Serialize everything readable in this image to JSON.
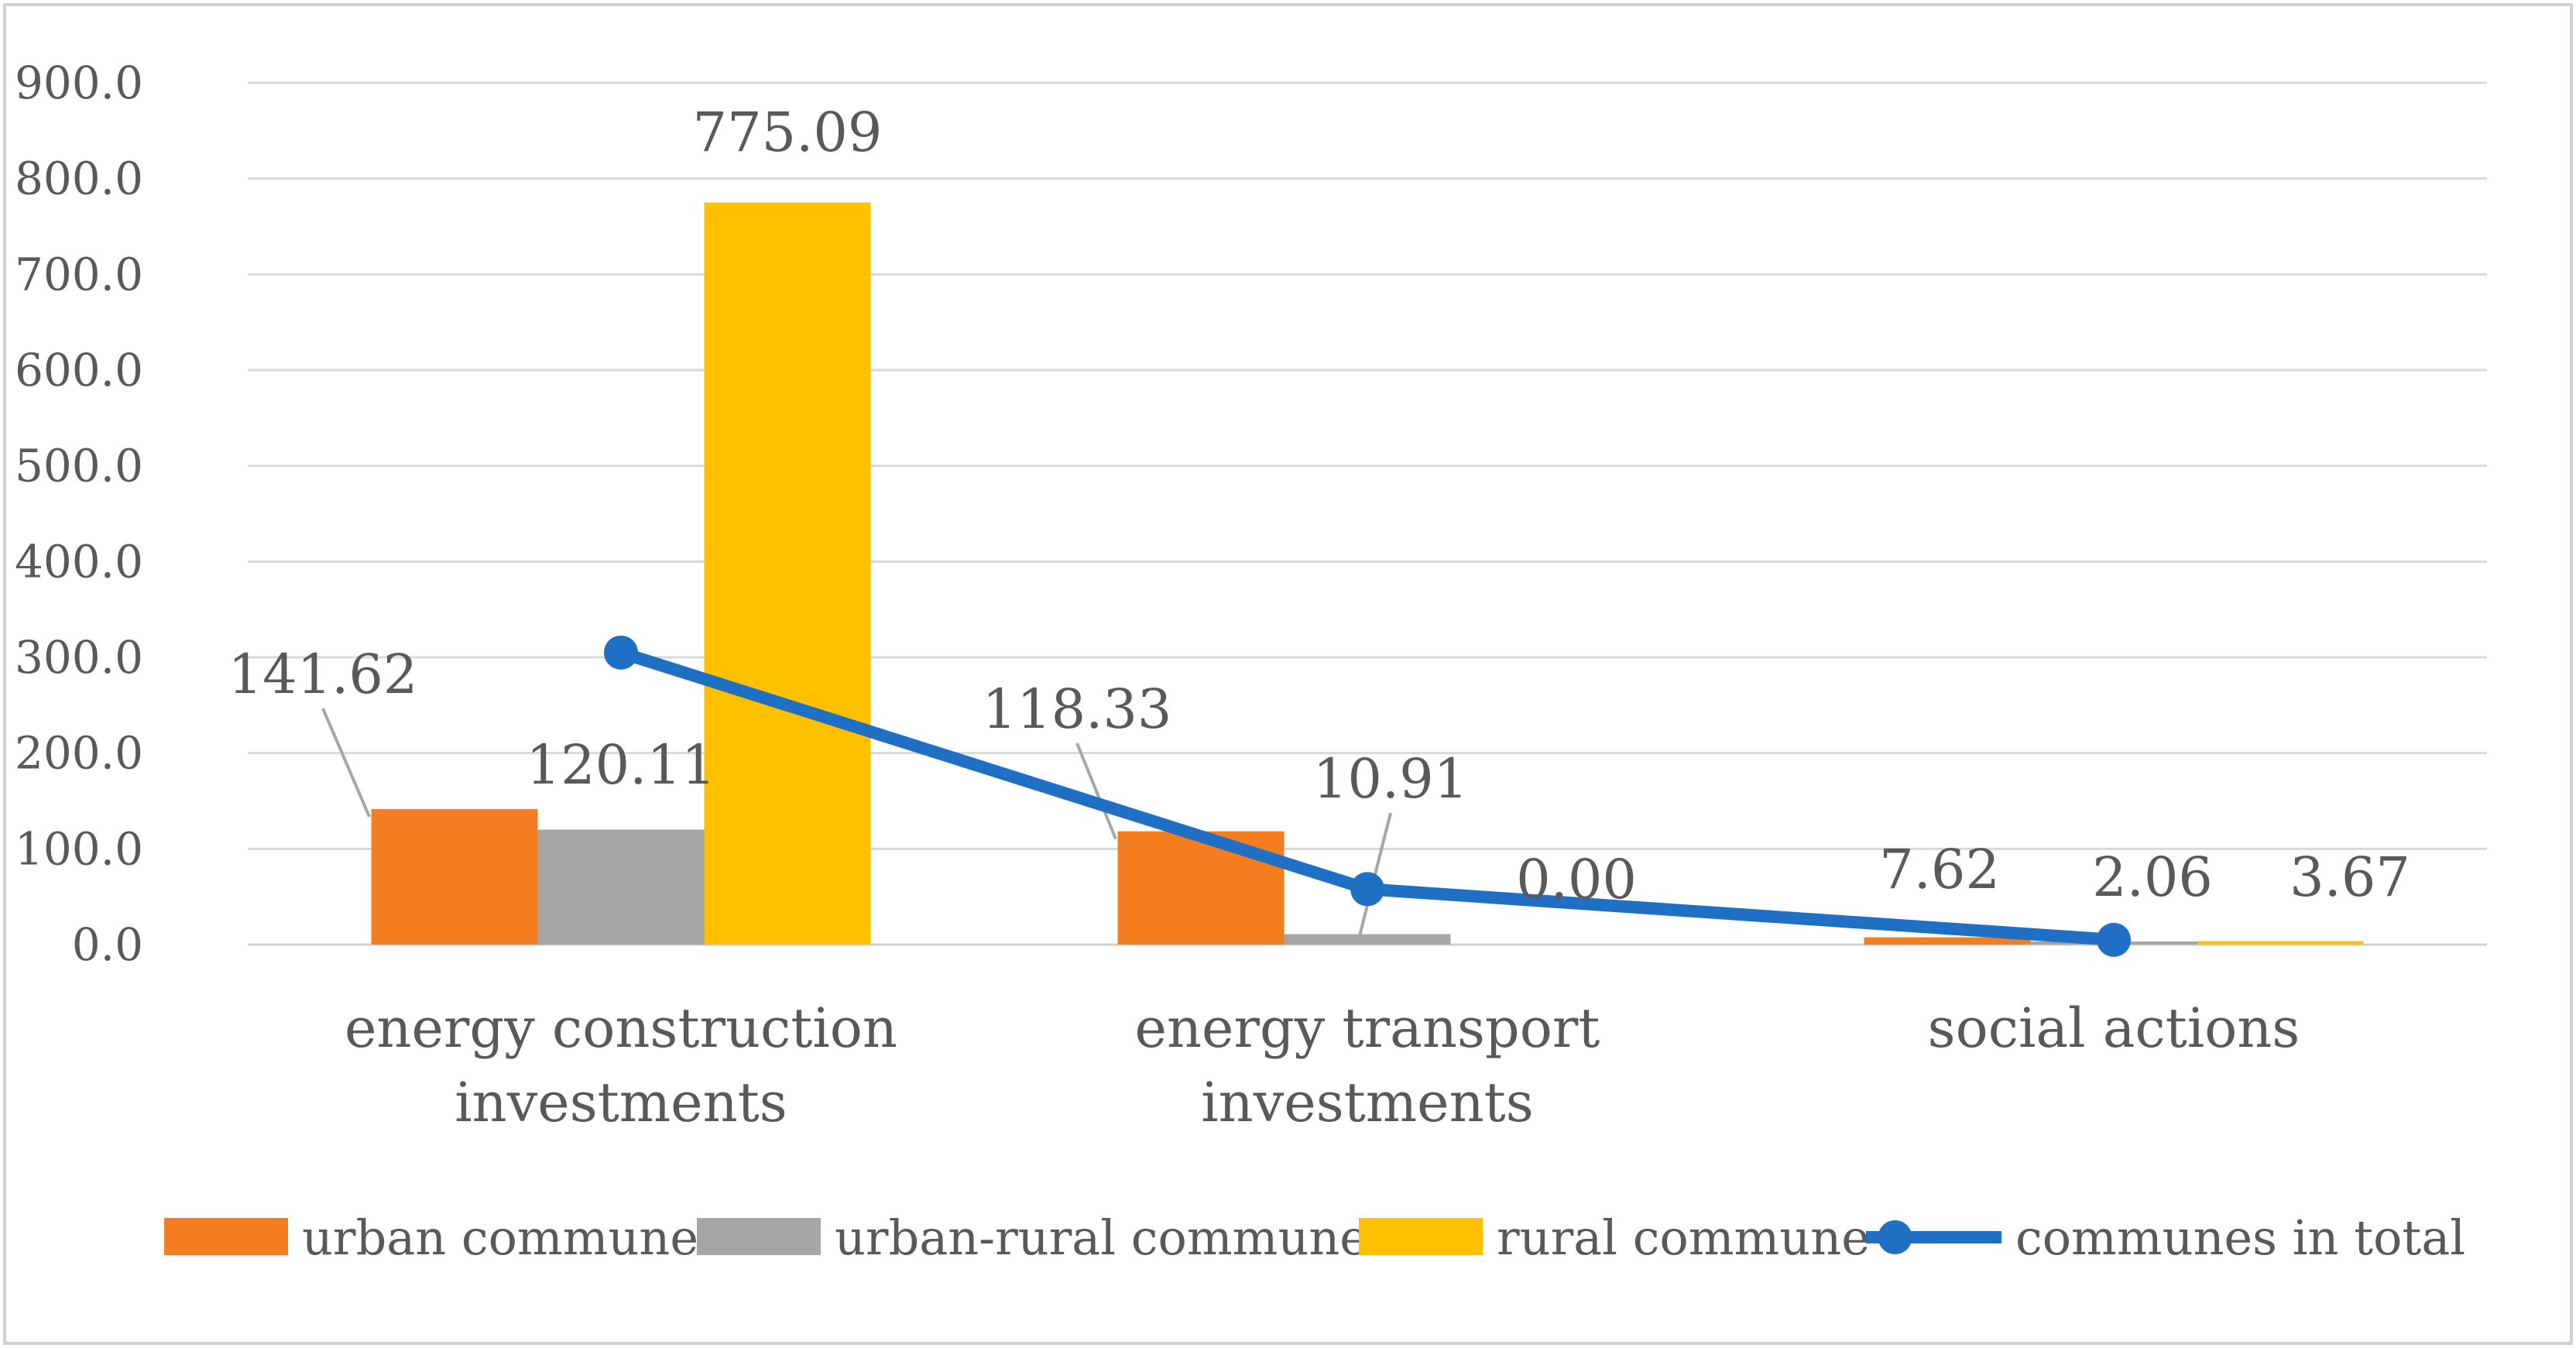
{
  "chart_data": {
    "type": "bar",
    "title": "",
    "xlabel": "",
    "ylabel": "",
    "ylim": [
      0,
      900
    ],
    "yticks": [
      "0.0",
      "100.0",
      "200.0",
      "300.0",
      "400.0",
      "500.0",
      "600.0",
      "700.0",
      "800.0",
      "900.0"
    ],
    "grid": true,
    "legend_position": "bottom",
    "categories": [
      [
        "energy construction",
        "investments"
      ],
      [
        "energy transport",
        "investments"
      ],
      [
        "social actions"
      ]
    ],
    "series": [
      {
        "name": "urban commune",
        "kind": "bar",
        "color": "#F47D1F",
        "values": [
          141.62,
          118.33,
          7.62
        ],
        "labels": [
          "141.62",
          "118.33",
          "7.62"
        ]
      },
      {
        "name": "urban-rural commune",
        "kind": "bar",
        "color": "#A5A5A5",
        "values": [
          120.11,
          10.91,
          2.06
        ],
        "labels": [
          "120.11",
          "10.91",
          "2.06"
        ]
      },
      {
        "name": "rural commune",
        "kind": "bar",
        "color": "#FFC000",
        "values": [
          775.09,
          0.0,
          3.67
        ],
        "labels": [
          "775.09",
          "0.00",
          "3.67"
        ]
      },
      {
        "name": "communes in total",
        "kind": "line",
        "color": "#1F6FC5",
        "values": [
          305,
          58,
          5
        ]
      }
    ]
  }
}
